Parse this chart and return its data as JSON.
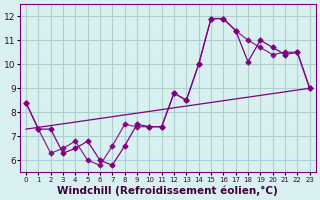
{
  "background_color": "#d8f0f0",
  "grid_color": "#b0d0d0",
  "line_color": "#800080",
  "xlabel": "Windchill (Refroidissement éolien,°C)",
  "xlabel_fontsize": 7.5,
  "yticks": [
    6,
    7,
    8,
    9,
    10,
    11,
    12
  ],
  "xtick_labels": [
    "0",
    "1",
    "2",
    "3",
    "4",
    "5",
    "6",
    "7",
    "8",
    "9",
    "10",
    "11",
    "12",
    "13",
    "14",
    "15",
    "16",
    "17",
    "18",
    "19",
    "20",
    "21",
    "22",
    "23"
  ],
  "series1_x": [
    0,
    1,
    2,
    3,
    4,
    5,
    6,
    7,
    8,
    9,
    10,
    11,
    12,
    13,
    14,
    15,
    16,
    17,
    18,
    19,
    20,
    21,
    22,
    23
  ],
  "series1_y": [
    8.4,
    7.3,
    7.3,
    6.3,
    6.5,
    6.8,
    6.0,
    5.8,
    6.6,
    7.5,
    7.4,
    7.4,
    8.8,
    8.5,
    10.0,
    11.9,
    11.9,
    11.4,
    10.1,
    11.0,
    10.7,
    10.4,
    10.5,
    9.0
  ],
  "series2_x": [
    0,
    1,
    2,
    3,
    4,
    5,
    6,
    7,
    8,
    9,
    10,
    11,
    12,
    13,
    14,
    15,
    16,
    17,
    18,
    19,
    20,
    21,
    22,
    23
  ],
  "series2_y": [
    8.4,
    7.3,
    6.3,
    6.5,
    6.8,
    6.0,
    5.8,
    6.6,
    7.5,
    7.4,
    7.4,
    7.4,
    8.8,
    8.5,
    10.0,
    11.9,
    11.9,
    11.4,
    11.0,
    10.7,
    10.4,
    10.5,
    10.5,
    9.0
  ],
  "trend_x": [
    0,
    23
  ],
  "trend_y": [
    7.3,
    9.0
  ],
  "xlim": [
    -0.5,
    23.5
  ],
  "ylim": [
    5.5,
    12.5
  ]
}
